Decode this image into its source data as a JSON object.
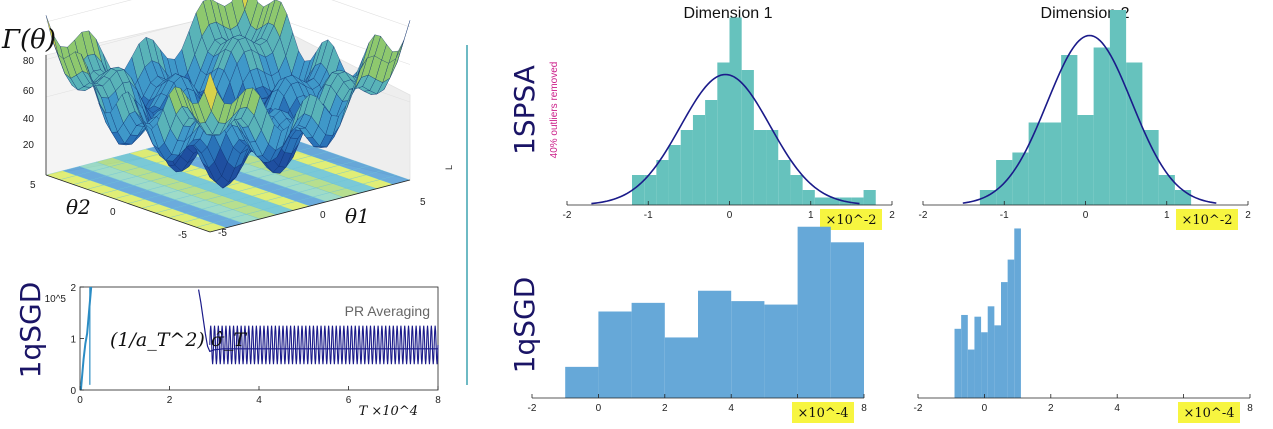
{
  "surface": {
    "title": "Γ(θ)",
    "zticks": [
      "80",
      "60",
      "40",
      "20"
    ],
    "theta2_label": "θ2",
    "theta1_label": "θ1",
    "theta2_ticks": [
      "5",
      "0",
      "-5"
    ],
    "theta1_ticks": [
      "-5",
      "0",
      "5"
    ]
  },
  "row_labels": {
    "top": "1SPSA",
    "bottom": "1qSGD",
    "left_bottom": "1qSGD"
  },
  "annotation": "40% outliers removed",
  "column_titles": [
    "Dimension 1",
    "Dimension 2"
  ],
  "stray_mark": "L",
  "colors": {
    "teal": "#66c2bd",
    "blue": "#66a8d8",
    "navy": "#1b1b8a",
    "yellow": "#f7f540",
    "magenta": "#cc1f8a",
    "divider": "#4aa8b6"
  },
  "chart_data": [
    {
      "type": "line",
      "id": "trace",
      "xlabel": "T ×10^4",
      "ylabel_prefix": "10^5",
      "legend": "PR Averaging",
      "formula": "(1/a_T^2) σ̂_T",
      "xlim": [
        0,
        8
      ],
      "ylim": [
        0,
        2
      ],
      "xticks": [
        "0",
        "2",
        "4",
        "6",
        "8"
      ],
      "yticks": [
        "0",
        "1",
        "2"
      ],
      "series": [
        {
          "x": [
            0.02,
            0.05,
            0.08,
            0.12,
            0.16,
            0.2,
            0.25
          ],
          "y": [
            0.0,
            0.3,
            0.6,
            0.9,
            1.1,
            1.5,
            2.0
          ]
        },
        {
          "x": [
            2.65,
            2.7,
            2.75,
            2.8,
            2.85,
            2.9,
            3.0,
            3.2,
            3.5,
            4.0,
            5.0,
            6.0,
            7.0,
            8.0
          ],
          "y": [
            1.95,
            1.7,
            1.4,
            1.1,
            0.85,
            0.75,
            0.78,
            0.8,
            0.8,
            0.8,
            0.8,
            0.8,
            0.8,
            0.8
          ]
        }
      ],
      "oscillation": {
        "x_start": 2.9,
        "x_end": 8.0,
        "y_low": 0.5,
        "y_high": 1.25,
        "cycles": 60
      }
    },
    {
      "type": "bar",
      "id": "h11",
      "xlim": [
        -2,
        2
      ],
      "xticks": [
        "-2",
        "-1",
        "0",
        "1",
        "2"
      ],
      "xscale_label": "×10^-2",
      "ylim": [
        0,
        13
      ],
      "bin_edges": [
        -1.2,
        -1.05,
        -0.9,
        -0.75,
        -0.6,
        -0.45,
        -0.3,
        -0.15,
        0,
        0.15,
        0.3,
        0.45,
        0.6,
        0.75,
        0.9,
        1.05,
        1.2,
        1.35,
        1.5,
        1.65,
        1.8,
        1.95
      ],
      "values": [
        2,
        2,
        3,
        4,
        5,
        6,
        7,
        9.5,
        12.5,
        9,
        5,
        5,
        3,
        2,
        1,
        0.5,
        0.5,
        0.5,
        0.5,
        1,
        0
      ],
      "fit": {
        "type": "normal",
        "mean": -0.05,
        "sd": 0.55,
        "peak": 8.7
      }
    },
    {
      "type": "bar",
      "id": "h12",
      "xlim": [
        -2,
        2
      ],
      "xticks": [
        "-2",
        "-1",
        "0",
        "1",
        "2"
      ],
      "xscale_label": "×10^-2",
      "ylim": [
        0,
        13
      ],
      "bin_edges": [
        -1.3,
        -1.1,
        -0.9,
        -0.7,
        -0.5,
        -0.3,
        -0.1,
        0.1,
        0.3,
        0.5,
        0.7,
        0.9,
        1.1,
        1.3
      ],
      "values": [
        1,
        3,
        3.5,
        5.5,
        5.5,
        10,
        6,
        10.5,
        13,
        9.5,
        5,
        2,
        1
      ],
      "fit": {
        "type": "normal",
        "mean": 0.05,
        "sd": 0.52,
        "peak": 11.3
      }
    },
    {
      "type": "bar",
      "id": "h21",
      "xlim": [
        -2,
        8
      ],
      "xticks": [
        "-2",
        "0",
        "2",
        "4",
        "6",
        "8"
      ],
      "xscale_label": "×10^-4",
      "ylim": [
        0,
        10
      ],
      "bin_edges": [
        -1,
        0,
        1,
        2,
        3,
        4,
        5,
        6,
        7,
        8
      ],
      "values": [
        1.8,
        5.0,
        5.5,
        3.5,
        6.2,
        5.6,
        5.4,
        9.9,
        9.0
      ]
    },
    {
      "type": "bar",
      "id": "h22",
      "xlim": [
        -2,
        8
      ],
      "xticks": [
        "-2",
        "0",
        "2",
        "4",
        "6",
        "8"
      ],
      "xscale_label": "×10^-4",
      "ylim": [
        0,
        10
      ],
      "bin_edges": [
        -0.9,
        -0.7,
        -0.5,
        -0.3,
        -0.1,
        0.1,
        0.3,
        0.5,
        0.7,
        0.9,
        1.1
      ],
      "values": [
        4,
        4.8,
        2.8,
        4.7,
        3.8,
        5.3,
        4.2,
        6.7,
        8.0,
        9.8
      ]
    }
  ]
}
